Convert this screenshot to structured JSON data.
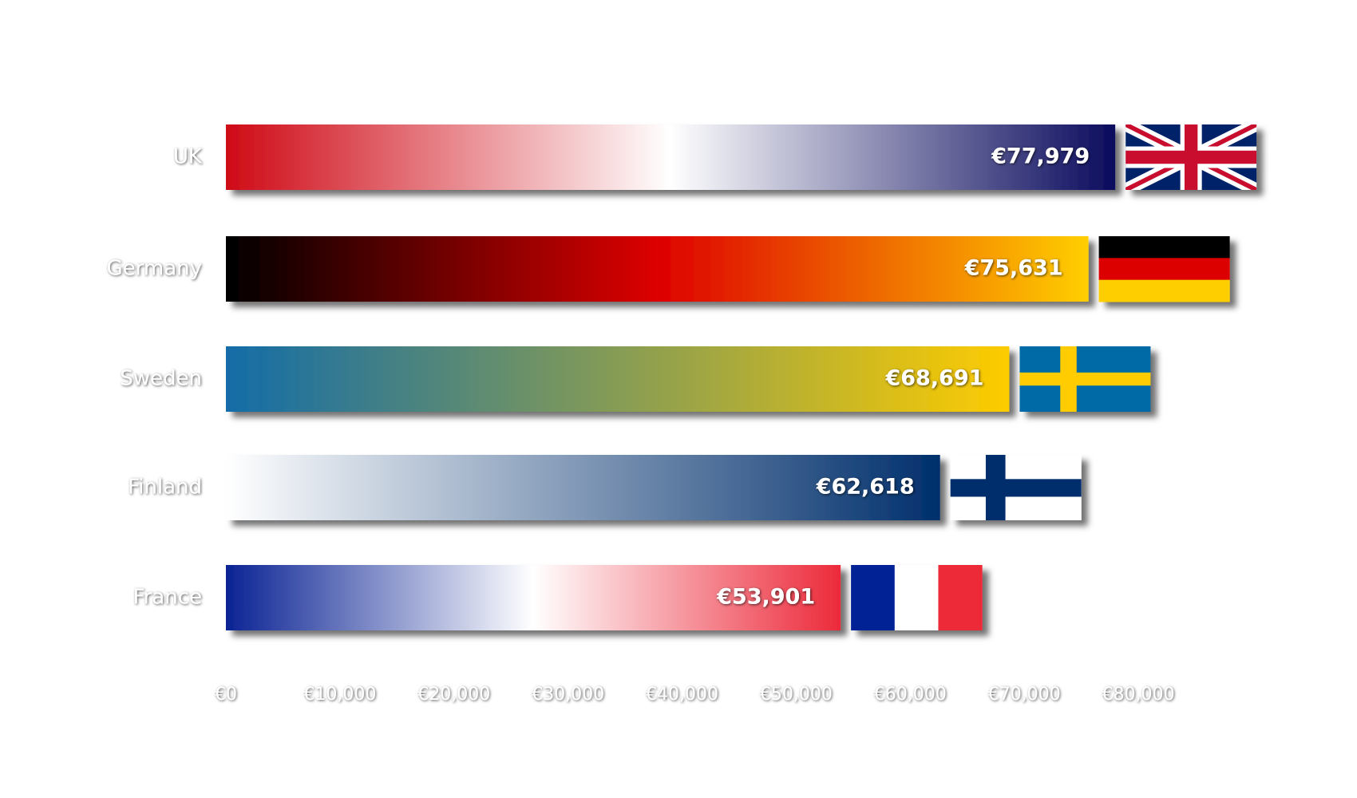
{
  "chart_data": {
    "type": "bar",
    "orientation": "horizontal",
    "categories": [
      "UK",
      "Germany",
      "Sweden",
      "Finland",
      "France"
    ],
    "values": [
      77979,
      75631,
      68691,
      62618,
      53901
    ],
    "value_labels": [
      "€77,979",
      "€75,631",
      "€68,691",
      "€62,618",
      "€53,901"
    ],
    "gradients": [
      [
        "#cf0a16",
        "#ffffff",
        "#0b0b5e"
      ],
      [
        "#000000",
        "#dd0000",
        "#ffce00"
      ],
      [
        "#136ca8",
        "#869c55",
        "#fecc00"
      ],
      [
        "#ffffff",
        "#002f6c"
      ],
      [
        "#0b2394",
        "#ffffff",
        "#ec2a3a"
      ]
    ],
    "xlim": [
      0,
      80000
    ],
    "xticks": [
      {
        "value": 0,
        "label": "€0"
      },
      {
        "value": 10000,
        "label": "€10,000"
      },
      {
        "value": 20000,
        "label": "€20,000"
      },
      {
        "value": 30000,
        "label": "€30,000"
      },
      {
        "value": 40000,
        "label": "€40,000"
      },
      {
        "value": 50000,
        "label": "€50,000"
      },
      {
        "value": 60000,
        "label": "€60,000"
      },
      {
        "value": 70000,
        "label": "€70,000"
      },
      {
        "value": 80000,
        "label": "€80,000"
      }
    ],
    "grid": false
  }
}
